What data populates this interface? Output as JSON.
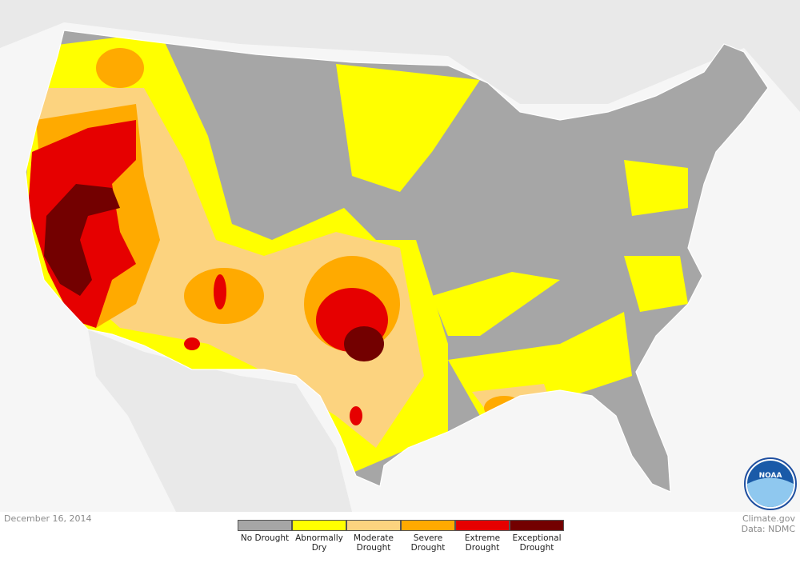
{
  "date": "December 16, 2014",
  "legend": [
    {
      "label": "No Drought",
      "color": "#a6a6a6"
    },
    {
      "label": "Abnormally Dry",
      "color": "#ffff00"
    },
    {
      "label": "Moderate Drought",
      "color": "#fcd37f"
    },
    {
      "label": "Severe Drought",
      "color": "#ffaa00"
    },
    {
      "label": "Extreme Drought",
      "color": "#e60000"
    },
    {
      "label": "Exceptional Drought",
      "color": "#730000"
    }
  ],
  "credits": [
    "Climate.gov",
    "Data: NDMC"
  ],
  "logo": "NOAA"
}
